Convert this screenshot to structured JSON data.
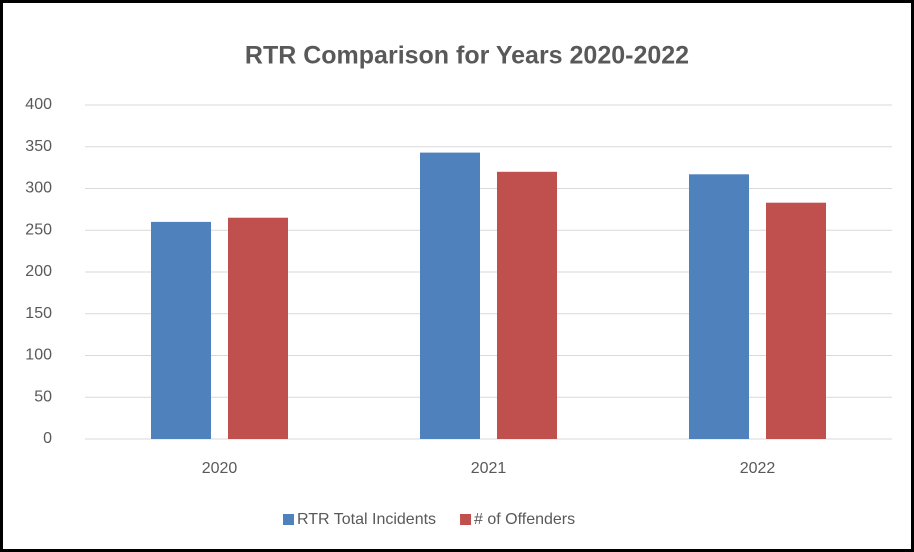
{
  "chart_data": {
    "type": "bar",
    "title": "RTR Comparison for Years 2020-2022",
    "categories": [
      "2020",
      "2021",
      "2022"
    ],
    "series": [
      {
        "name": "RTR Total Incidents",
        "color": "#4f81bd",
        "values": [
          260,
          343,
          317
        ]
      },
      {
        "name": "# of Offenders",
        "color": "#c0504d",
        "values": [
          265,
          320,
          283
        ]
      }
    ],
    "ylim": [
      0,
      400
    ],
    "yticks": [
      0,
      50,
      100,
      150,
      200,
      250,
      300,
      350,
      400
    ],
    "grid": true,
    "legend": "bottom"
  }
}
